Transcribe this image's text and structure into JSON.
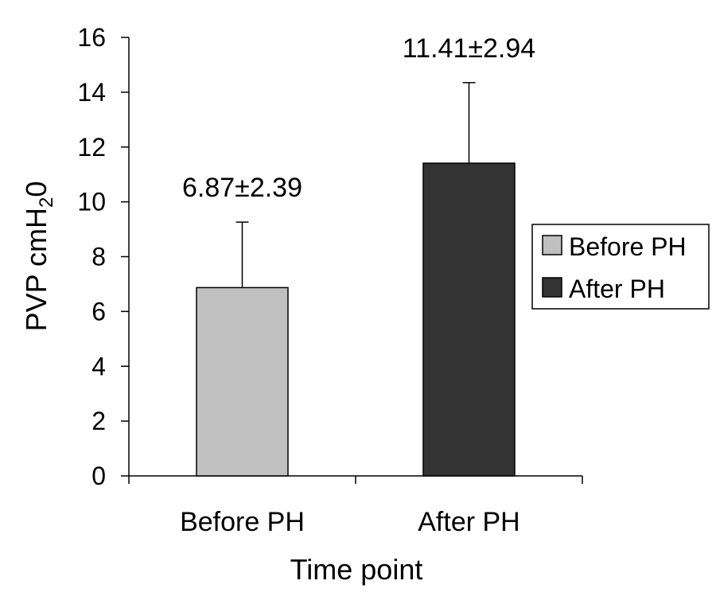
{
  "chart_data": {
    "type": "bar",
    "categories": [
      "Before PH",
      "After PH"
    ],
    "values": [
      6.87,
      11.41
    ],
    "errors": [
      2.39,
      2.94
    ],
    "data_labels": [
      "6.87±2.39",
      "11.41±2.94"
    ],
    "colors": [
      "#c0c0c0",
      "#333333"
    ],
    "xlabel": "Time point",
    "ylabel": "PVP cmH",
    "ylabel_subscript": "2",
    "ylabel_suffix": "0",
    "ylim": [
      0,
      16
    ],
    "yticks": [
      0,
      2,
      4,
      6,
      8,
      10,
      12,
      14,
      16
    ],
    "grid": false,
    "legend": {
      "position": "right",
      "entries": [
        "Before PH",
        "After PH"
      ]
    }
  }
}
